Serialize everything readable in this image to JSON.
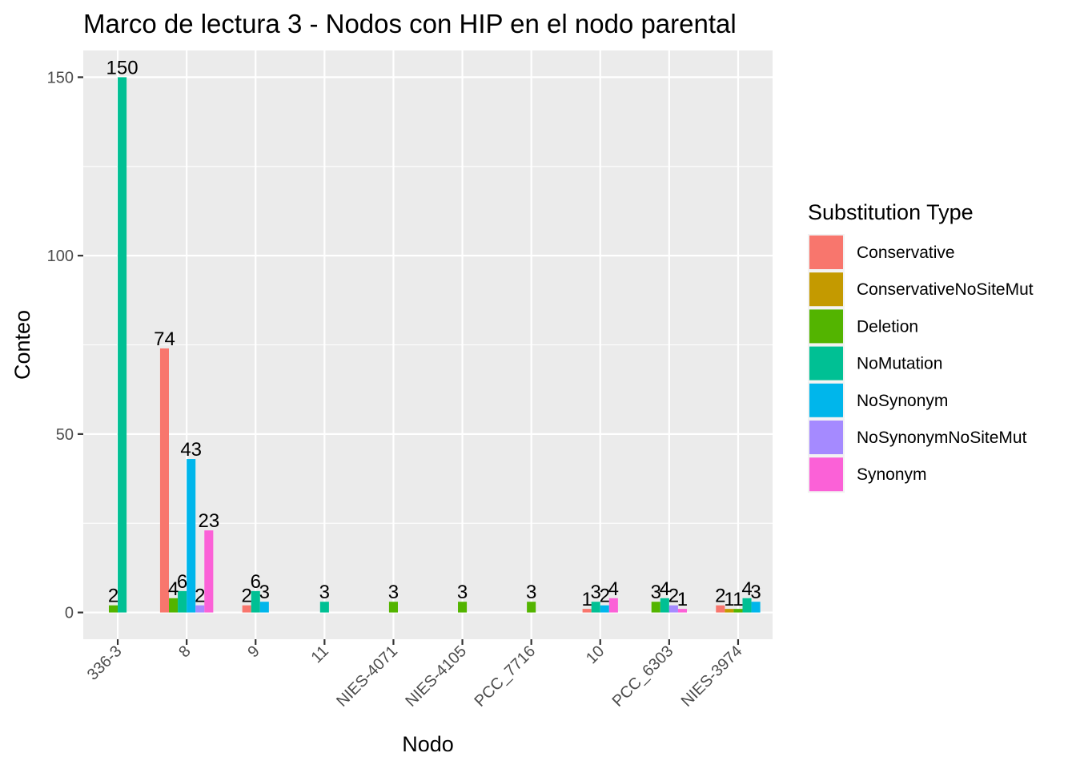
{
  "chart_data": {
    "type": "bar",
    "title": "Marco de lectura 3 - Nodos con HIP en el nodo parental",
    "xlabel": "Nodo",
    "ylabel": "Conteo",
    "ylim": [
      -7.5,
      157.5
    ],
    "yticks": [
      0,
      50,
      100,
      150
    ],
    "grid": true,
    "legend": {
      "title": "Substitution Type",
      "position": "right",
      "entries": [
        {
          "name": "Conservative",
          "color": "#F8766D"
        },
        {
          "name": "ConservativeNoSiteMut",
          "color": "#C49A00"
        },
        {
          "name": "Deletion",
          "color": "#53B400"
        },
        {
          "name": "NoMutation",
          "color": "#00C094"
        },
        {
          "name": "NoSynonym",
          "color": "#00B6EB"
        },
        {
          "name": "NoSynonymNoSiteMut",
          "color": "#A58AFF"
        },
        {
          "name": "Synonym",
          "color": "#FB61D7"
        }
      ]
    },
    "categories": [
      "336-3",
      "8",
      "9",
      "11",
      "NIES-4071",
      "NIES-4105",
      "PCC_7716",
      "10",
      "PCC_6303",
      "NIES-3974"
    ],
    "groups": [
      {
        "category": "336-3",
        "bars": [
          {
            "type": "Deletion",
            "value": 2,
            "label": "2"
          },
          {
            "type": "NoMutation",
            "value": 150,
            "label": "150"
          }
        ]
      },
      {
        "category": "8",
        "bars": [
          {
            "type": "Conservative",
            "value": 74,
            "label": "74"
          },
          {
            "type": "Deletion",
            "value": 4,
            "label": "4"
          },
          {
            "type": "NoMutation",
            "value": 6,
            "label": "6"
          },
          {
            "type": "NoSynonym",
            "value": 43,
            "label": "43"
          },
          {
            "type": "NoSynonymNoSiteMut",
            "value": 2,
            "label": "2"
          },
          {
            "type": "Synonym",
            "value": 23,
            "label": "23"
          }
        ]
      },
      {
        "category": "9",
        "bars": [
          {
            "type": "Conservative",
            "value": 2,
            "label": "2"
          },
          {
            "type": "NoMutation",
            "value": 6,
            "label": "6"
          },
          {
            "type": "NoSynonym",
            "value": 3,
            "label": "3"
          }
        ]
      },
      {
        "category": "11",
        "bars": [
          {
            "type": "NoMutation",
            "value": 3,
            "label": "3"
          }
        ]
      },
      {
        "category": "NIES-4071",
        "bars": [
          {
            "type": "Deletion",
            "value": 3,
            "label": "3"
          }
        ]
      },
      {
        "category": "NIES-4105",
        "bars": [
          {
            "type": "Deletion",
            "value": 3,
            "label": "3"
          }
        ]
      },
      {
        "category": "PCC_7716",
        "bars": [
          {
            "type": "Deletion",
            "value": 3,
            "label": "3"
          }
        ]
      },
      {
        "category": "10",
        "bars": [
          {
            "type": "Conservative",
            "value": 1,
            "label": "1"
          },
          {
            "type": "NoMutation",
            "value": 3,
            "label": "3"
          },
          {
            "type": "NoSynonym",
            "value": 2,
            "label": "2"
          },
          {
            "type": "Synonym",
            "value": 4,
            "label": "4"
          }
        ]
      },
      {
        "category": "PCC_6303",
        "bars": [
          {
            "type": "Deletion",
            "value": 3,
            "label": "3"
          },
          {
            "type": "NoMutation",
            "value": 4,
            "label": "4"
          },
          {
            "type": "NoSynonymNoSiteMut",
            "value": 2,
            "label": "2"
          },
          {
            "type": "Synonym",
            "value": 1,
            "label": "1"
          }
        ]
      },
      {
        "category": "NIES-3974",
        "bars": [
          {
            "type": "Conservative",
            "value": 2,
            "label": "2"
          },
          {
            "type": "ConservativeNoSiteMut",
            "value": 1,
            "label": "1"
          },
          {
            "type": "Deletion",
            "value": 1,
            "label": "1"
          },
          {
            "type": "NoMutation",
            "value": 4,
            "label": "4"
          },
          {
            "type": "NoSynonym",
            "value": 3,
            "label": "3"
          }
        ]
      }
    ]
  }
}
